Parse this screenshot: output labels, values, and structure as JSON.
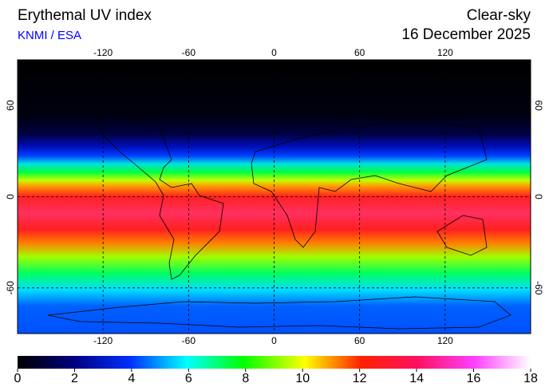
{
  "header": {
    "title": "Erythemal UV index",
    "source": "KNMI / ESA",
    "condition": "Clear-sky",
    "date": "16 December 2025"
  },
  "map": {
    "lon_range": [
      -180,
      180
    ],
    "lat_range": [
      -90,
      90
    ],
    "lon_ticks": [
      -120,
      -60,
      0,
      60,
      120
    ],
    "lat_ticks": [
      60,
      0,
      -60
    ]
  },
  "colorbar": {
    "range": [
      0,
      18
    ],
    "ticks": [
      0,
      2,
      4,
      6,
      8,
      10,
      12,
      14,
      16,
      18
    ]
  }
}
